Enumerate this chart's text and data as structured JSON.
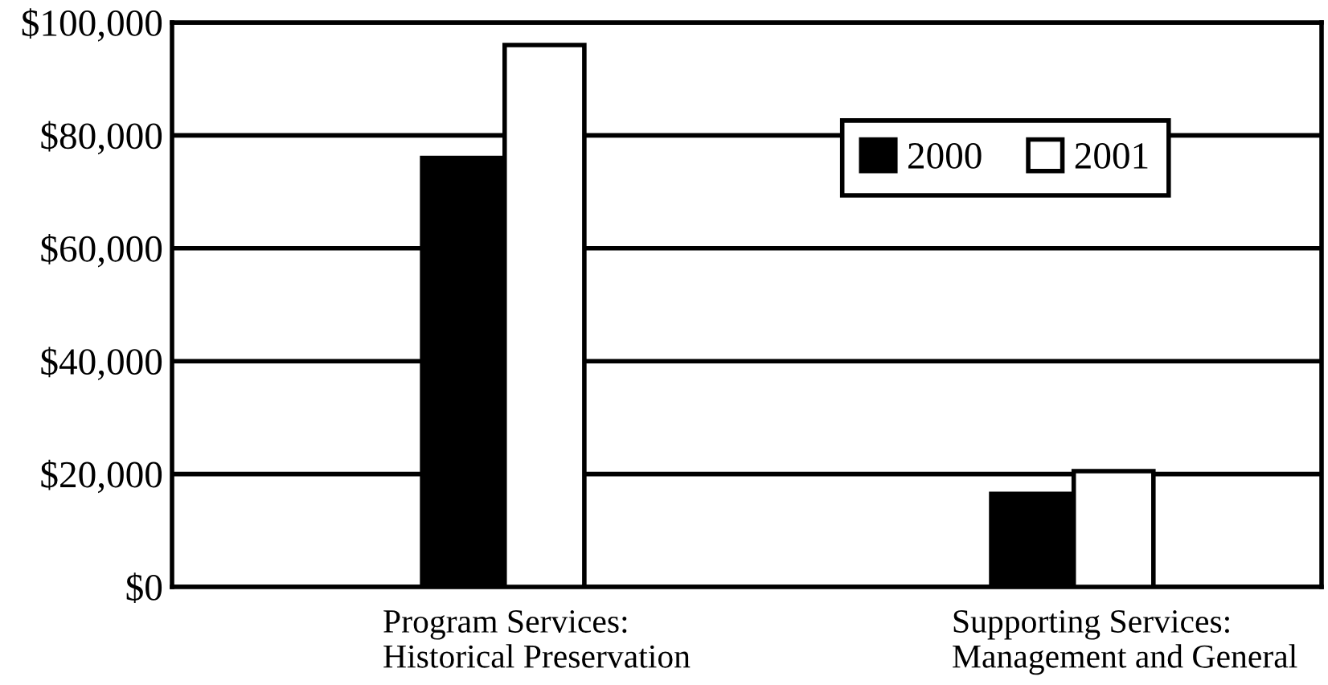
{
  "chart_data": {
    "type": "bar",
    "categories": [
      "Program Services:\nHistorical Preservation",
      "Supporting Services:\nManagement and General"
    ],
    "series": [
      {
        "name": "2000",
        "color": "#000000",
        "values": [
          76000,
          16500
        ]
      },
      {
        "name": "2001",
        "color": "#ffffff",
        "values": [
          96000,
          20500
        ]
      }
    ],
    "ylim": [
      0,
      100000
    ],
    "yticks": [
      {
        "value": 0,
        "label": "$0"
      },
      {
        "value": 20000,
        "label": "$20,000"
      },
      {
        "value": 40000,
        "label": "$40,000"
      },
      {
        "value": 60000,
        "label": "$60,000"
      },
      {
        "value": 80000,
        "label": "$80,000"
      },
      {
        "value": 100000,
        "label": "$100,000"
      }
    ],
    "grid": "y",
    "legend": "top"
  }
}
